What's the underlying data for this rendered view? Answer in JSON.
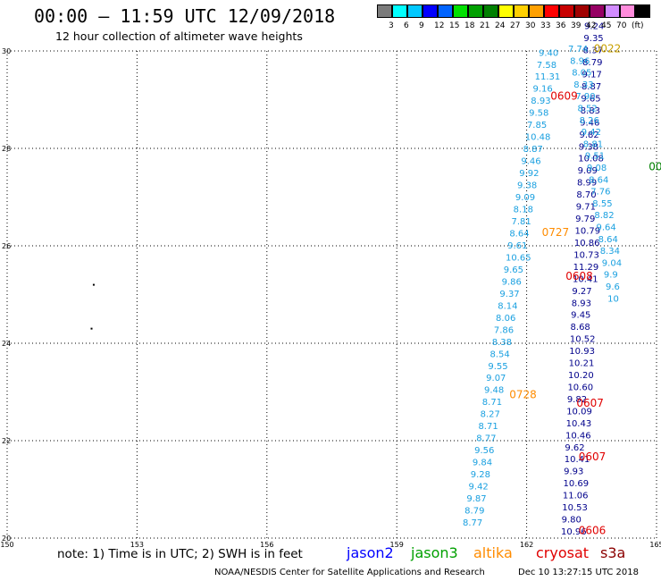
{
  "header": {
    "title": "00:00 – 11:59 UTC 12/09/2018",
    "subtitle": "12 hour collection of altimeter wave heights"
  },
  "color_scale": {
    "colors": [
      "#7b7b7b",
      "#00ffff",
      "#00c8ff",
      "#0000ff",
      "#0064ff",
      "#00e000",
      "#00a000",
      "#008000",
      "#ffff00",
      "#ffd000",
      "#ffa000",
      "#ff0000",
      "#c80000",
      "#a00000",
      "#960064",
      "#d28cff",
      "#ff8cdc",
      "#000000"
    ],
    "labels": [
      "3",
      "6",
      "9",
      "12",
      "15",
      "18",
      "21",
      "24",
      "27",
      "30",
      "33",
      "36",
      "39",
      "42",
      "45",
      "70",
      "(ft)"
    ]
  },
  "axes": {
    "x_ticks": [
      "150",
      "153",
      "156",
      "159",
      "162",
      "165"
    ],
    "y_ticks": [
      "30",
      "28",
      "26",
      "24",
      "22",
      "20"
    ]
  },
  "legend": {
    "note": "note: 1) Time is in UTC; 2) SWH is in feet",
    "satellites": [
      {
        "name": "jason2",
        "color": "#0000ff"
      },
      {
        "name": "jason3",
        "color": "#00a000"
      },
      {
        "name": "altika",
        "color": "#ff8c00"
      },
      {
        "name": "cryosat",
        "color": "#e00000"
      },
      {
        "name": "s3a",
        "color": "#8b0000"
      }
    ]
  },
  "footer": {
    "credit": "NOAA/NESDIS Center for Satellite Applications and Research",
    "timestamp": "Dec 10 13:27:15 UTC 2018"
  },
  "tracks": [
    {
      "sat": "jason2",
      "color": "#00008b",
      "start": [
        150.0,
        1.55
      ],
      "step": [
        11.5,
        -0.47
      ],
      "values": [
        "10.96",
        "9.80",
        "10.53",
        "11.06",
        "10.69",
        "9.93",
        "10.41",
        "9.62",
        "10.46",
        "10.43",
        "10.09",
        "9.82",
        "10.60",
        "10.20",
        "10.21",
        "10.93",
        "10.52",
        "8.68",
        "9.45",
        "8.93",
        "9.27",
        "10.41",
        "11.29",
        "10.73",
        "10.86",
        "10.79",
        "9.79",
        "9.71",
        "8.70",
        "8.99",
        "9.09",
        "10.08",
        "9.38",
        "9.82",
        "9.46",
        "8.83",
        "9.65",
        "8.87",
        "9.17",
        "8.79",
        "8.37",
        "9.35",
        "9.24"
      ]
    },
    {
      "sat": "altika",
      "color": "#1aa0e0",
      "start": [
        150.0,
        -1.6
      ],
      "step": [
        11.5,
        0.45
      ],
      "values": [
        "8.77",
        "8.79",
        "9.87",
        "9.42",
        "9.28",
        "9.84",
        "9.56",
        "8.77",
        "8.71",
        "8.27",
        "8.71",
        "9.48",
        "9.07",
        "9.55",
        "8.54",
        "8.38",
        "7.86",
        "8.06",
        "8.14",
        "9.37",
        "9.86",
        "9.65",
        "10.65",
        "9.61",
        "8.64",
        "7.81",
        "8.18",
        "9.09",
        "9.38",
        "9.92",
        "9.46",
        "8.87",
        "10.48",
        "7.85",
        "9.58",
        "8.93",
        "9.16",
        "11.31",
        "7.58",
        "9.40"
      ]
    },
    {
      "sat": "jason2",
      "color": "#1aa0e0",
      "start": [
        151.3,
        4.9
      ],
      "step": [
        11.5,
        -0.2
      ],
      "values": [
        "7.74",
        "8.96",
        "8.05",
        "8.33",
        "7.90",
        "8.52",
        "8.26",
        "9.42",
        "8.81",
        "9.51",
        "9.08",
        "8.64",
        "7.76",
        "8.55",
        "8.82",
        "9.64",
        "8.64",
        "8.34",
        "9.04",
        "9.9",
        "9.6",
        "10"
      ]
    }
  ],
  "time_labels": [
    {
      "text": "0022",
      "color": "#c8a000",
      "lon": 163.55,
      "lat": 29.97
    },
    {
      "text": "0609",
      "color": "#e00000",
      "lon": 162.55,
      "lat": 29.0
    },
    {
      "text": "0727",
      "color": "#ff8c00",
      "lon": 162.35,
      "lat": 26.2
    },
    {
      "text": "0608",
      "color": "#e00000",
      "lon": 162.9,
      "lat": 25.3
    },
    {
      "text": "0728",
      "color": "#ff8c00",
      "lon": 161.6,
      "lat": 22.87
    },
    {
      "text": "0607",
      "color": "#e00000",
      "lon": 163.15,
      "lat": 22.7
    },
    {
      "text": "0607",
      "color": "#e00000",
      "lon": 163.2,
      "lat": 21.6
    },
    {
      "text": "0606",
      "color": "#e00000",
      "lon": 163.2,
      "lat": 20.08
    },
    {
      "text": "00",
      "color": "#008000",
      "lon": 164.82,
      "lat": 27.55
    }
  ],
  "points": [
    {
      "lon": 152.0,
      "lat": 25.2
    },
    {
      "lon": 151.95,
      "lat": 24.3
    }
  ]
}
